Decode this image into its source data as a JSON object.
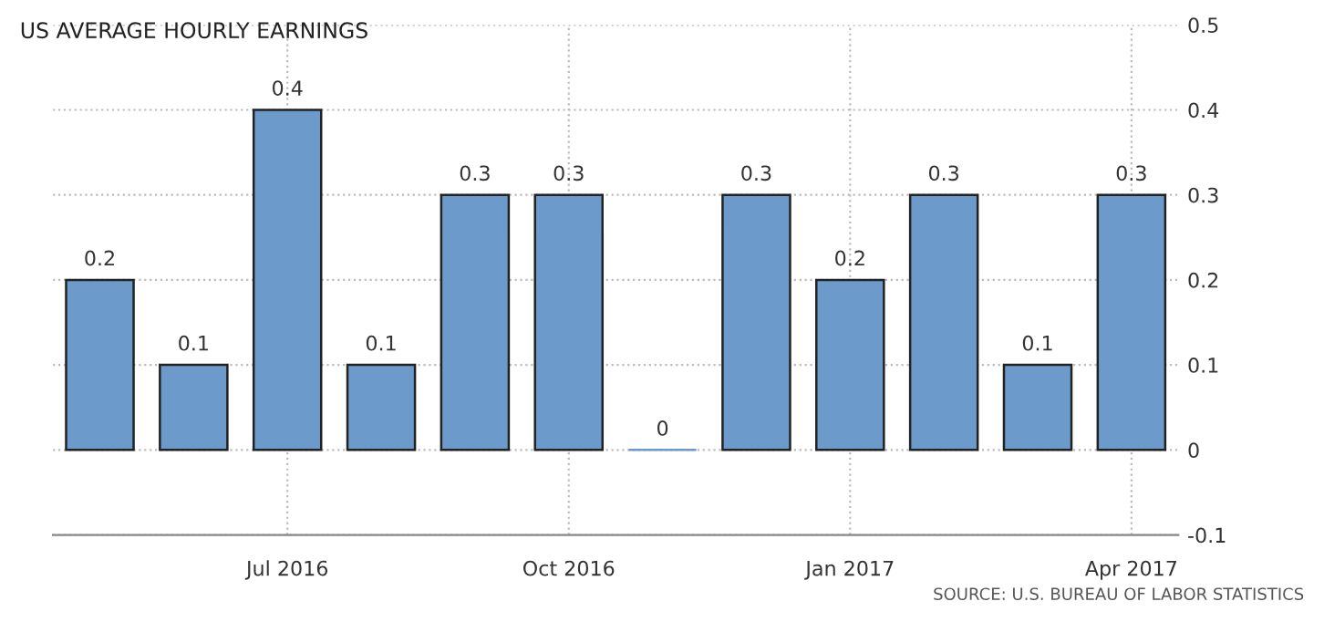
{
  "chart_data": {
    "type": "bar",
    "title": "US AVERAGE HOURLY EARNINGS",
    "categories": [
      null,
      null,
      "Jul 2016",
      null,
      null,
      "Oct 2016",
      null,
      null,
      "Jan 2017",
      null,
      null,
      "Apr 2017"
    ],
    "values": [
      0.2,
      0.1,
      0.4,
      0.1,
      0.3,
      0.3,
      0,
      0.3,
      0.2,
      0.3,
      0.1,
      0.3
    ],
    "color": "#6c9bcb",
    "ylim": [
      -0.1,
      0.5
    ],
    "yticks": [
      -0.1,
      0,
      0.1,
      0.2,
      0.3,
      0.4,
      0.5
    ],
    "grid": true,
    "data_labels": true,
    "annotations": [
      "SOURCE: U.S. BUREAU OF LABOR STATISTICS"
    ]
  }
}
